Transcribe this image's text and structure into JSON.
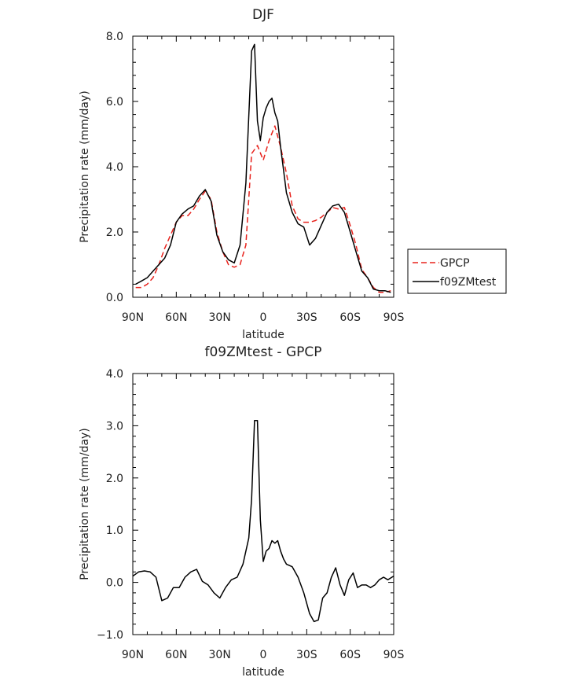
{
  "chart_data": [
    {
      "type": "line",
      "title": "DJF",
      "xlabel": "latitude",
      "ylabel": "Precipitation rate (mm/day)",
      "xlim": [
        90,
        -90
      ],
      "ylim": [
        0,
        8
      ],
      "xticks": [
        90,
        60,
        30,
        0,
        -30,
        -60,
        -90
      ],
      "xtick_labels": [
        "90N",
        "60N",
        "30N",
        "0",
        "30S",
        "60S",
        "90S"
      ],
      "yticks": [
        0,
        2,
        4,
        6,
        8
      ],
      "ytick_labels": [
        "0.0",
        "2.0",
        "4.0",
        "6.0",
        "8.0"
      ],
      "grid": false,
      "legend": {
        "placement": "right",
        "entries": [
          "GPCP",
          "f09ZMtest"
        ]
      },
      "series": [
        {
          "name": "GPCP",
          "color": "#e8231d",
          "dash": "dashed",
          "x": [
            88,
            84,
            80,
            76,
            72,
            68,
            64,
            60,
            56,
            52,
            48,
            44,
            40,
            36,
            32,
            28,
            24,
            20,
            16,
            12,
            8,
            4,
            0,
            -4,
            -8,
            -12,
            -16,
            -20,
            -24,
            -28,
            -32,
            -36,
            -40,
            -44,
            -48,
            -52,
            -56,
            -60,
            -64,
            -68,
            -72,
            -76,
            -80,
            -84,
            -88
          ],
          "values": [
            0.3,
            0.3,
            0.4,
            0.6,
            1.0,
            1.5,
            1.9,
            2.3,
            2.5,
            2.5,
            2.7,
            3.0,
            3.25,
            3.0,
            2.0,
            1.4,
            1.0,
            0.92,
            1.0,
            1.6,
            4.4,
            4.65,
            4.2,
            4.8,
            5.25,
            4.6,
            3.8,
            2.8,
            2.4,
            2.3,
            2.3,
            2.35,
            2.45,
            2.6,
            2.75,
            2.7,
            2.75,
            2.2,
            1.6,
            0.85,
            0.6,
            0.3,
            0.15,
            0.15,
            0.2
          ]
        },
        {
          "name": "f09ZMtest",
          "color": "#000000",
          "dash": "solid",
          "x": [
            88,
            84,
            80,
            76,
            72,
            68,
            64,
            60,
            56,
            52,
            48,
            44,
            40,
            36,
            32,
            28,
            24,
            20,
            16,
            12,
            8,
            6,
            4,
            2,
            0,
            -2,
            -4,
            -6,
            -8,
            -10,
            -12,
            -16,
            -20,
            -24,
            -28,
            -32,
            -36,
            -40,
            -44,
            -48,
            -52,
            -56,
            -60,
            -64,
            -68,
            -72,
            -76,
            -80,
            -84,
            -88
          ],
          "values": [
            0.4,
            0.5,
            0.6,
            0.8,
            1.0,
            1.2,
            1.6,
            2.3,
            2.55,
            2.7,
            2.8,
            3.1,
            3.3,
            2.95,
            1.9,
            1.4,
            1.15,
            1.05,
            1.6,
            3.5,
            7.55,
            7.75,
            5.4,
            4.8,
            5.5,
            5.8,
            6.0,
            6.1,
            5.65,
            5.4,
            4.6,
            3.2,
            2.6,
            2.25,
            2.15,
            1.6,
            1.8,
            2.2,
            2.6,
            2.8,
            2.85,
            2.6,
            2.0,
            1.4,
            0.8,
            0.6,
            0.25,
            0.2,
            0.2,
            0.15
          ]
        }
      ]
    },
    {
      "type": "line",
      "title": "f09ZMtest - GPCP",
      "xlabel": "latitude",
      "ylabel": "Precipitation rate (mm/day)",
      "xlim": [
        90,
        -90
      ],
      "ylim": [
        -1,
        4
      ],
      "xticks": [
        90,
        60,
        30,
        0,
        -30,
        -60,
        -90
      ],
      "xtick_labels": [
        "90N",
        "60N",
        "30N",
        "0",
        "30S",
        "60S",
        "90S"
      ],
      "yticks": [
        -1,
        0,
        1,
        2,
        3,
        4
      ],
      "ytick_labels": [
        "−1.0",
        "0.0",
        "1.0",
        "2.0",
        "3.0",
        "4.0"
      ],
      "grid": false,
      "series": [
        {
          "color": "#000000",
          "dash": "solid",
          "x": [
            90,
            86,
            82,
            78,
            74,
            70,
            66,
            62,
            58,
            54,
            50,
            46,
            42,
            38,
            34,
            30,
            26,
            22,
            18,
            14,
            10,
            8,
            6,
            4,
            2,
            0,
            -2,
            -4,
            -6,
            -8,
            -10,
            -12,
            -14,
            -16,
            -20,
            -24,
            -28,
            -32,
            -35,
            -38,
            -41,
            -44,
            -47,
            -50,
            -53,
            -56,
            -59,
            -62,
            -65,
            -68,
            -71,
            -74,
            -77,
            -80,
            -83,
            -86,
            -90
          ],
          "values": [
            0.12,
            0.2,
            0.22,
            0.2,
            0.1,
            -0.35,
            -0.3,
            -0.1,
            -0.1,
            0.1,
            0.2,
            0.25,
            0.02,
            -0.05,
            -0.2,
            -0.3,
            -0.1,
            0.05,
            0.1,
            0.35,
            0.85,
            1.6,
            3.1,
            3.1,
            1.2,
            0.4,
            0.6,
            0.65,
            0.8,
            0.75,
            0.8,
            0.6,
            0.45,
            0.35,
            0.3,
            0.1,
            -0.2,
            -0.6,
            -0.75,
            -0.72,
            -0.3,
            -0.2,
            0.1,
            0.28,
            -0.05,
            -0.25,
            0.05,
            0.18,
            -0.1,
            -0.05,
            -0.05,
            -0.1,
            -0.05,
            0.05,
            0.1,
            0.05,
            0.12
          ]
        }
      ]
    }
  ]
}
